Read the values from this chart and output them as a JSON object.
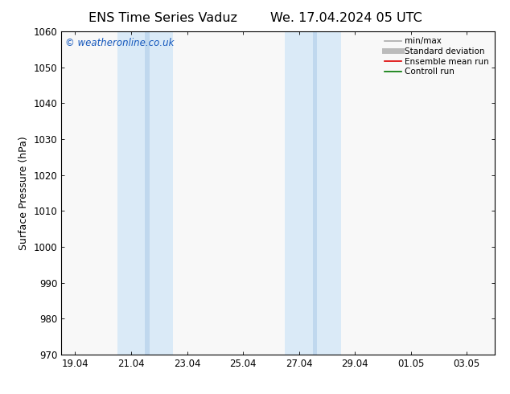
{
  "title_left": "ENS Time Series Vaduz",
  "title_right": "We. 17.04.2024 05 UTC",
  "ylabel": "Surface Pressure (hPa)",
  "ylim": [
    970,
    1060
  ],
  "yticks": [
    970,
    980,
    990,
    1000,
    1010,
    1020,
    1030,
    1040,
    1050,
    1060
  ],
  "xtick_labels": [
    "19.04",
    "21.04",
    "23.04",
    "25.04",
    "27.04",
    "29.04",
    "01.05",
    "03.05"
  ],
  "xtick_positions": [
    0,
    2,
    4,
    6,
    8,
    10,
    12,
    14
  ],
  "xlim": [
    -0.5,
    15.0
  ],
  "shaded_bands": [
    {
      "x_start": 1.5,
      "x_end": 3.5,
      "color": "#daeaf7",
      "alpha": 1.0
    },
    {
      "x_start": 7.5,
      "x_end": 9.5,
      "color": "#daeaf7",
      "alpha": 1.0
    }
  ],
  "narrow_bands": [
    {
      "x_start": 2.5,
      "x_end": 2.65,
      "color": "#c0d8ee",
      "alpha": 1.0
    },
    {
      "x_start": 8.5,
      "x_end": 8.65,
      "color": "#c0d8ee",
      "alpha": 1.0
    }
  ],
  "watermark_text": "© weatheronline.co.uk",
  "watermark_color": "#1155bb",
  "legend_entries": [
    {
      "label": "min/max",
      "color": "#aaaaaa",
      "lw": 1.2
    },
    {
      "label": "Standard deviation",
      "color": "#bbbbbb",
      "lw": 5
    },
    {
      "label": "Ensemble mean run",
      "color": "#dd0000",
      "lw": 1.2
    },
    {
      "label": "Controll run",
      "color": "#007700",
      "lw": 1.2
    }
  ],
  "bg_color": "#ffffff",
  "plot_bg_color": "#f8f8f8",
  "title_fontsize": 11.5,
  "label_fontsize": 9,
  "tick_fontsize": 8.5,
  "legend_fontsize": 7.5
}
